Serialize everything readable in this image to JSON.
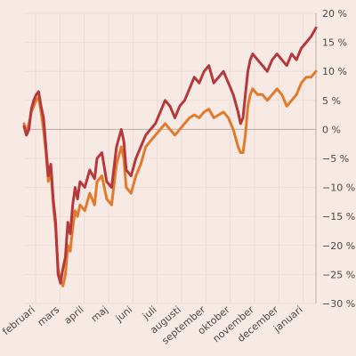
{
  "chart_data": {
    "type": "line",
    "title": "",
    "xlabel": "",
    "ylabel": "",
    "grid": true,
    "y_axis_position": "right",
    "ylim": [
      -30,
      20
    ],
    "yticks": [
      {
        "value": 20,
        "label": "20 %"
      },
      {
        "value": 15,
        "label": "15 %"
      },
      {
        "value": 10,
        "label": "10 %"
      },
      {
        "value": 5,
        "label": "5 %"
      },
      {
        "value": 0,
        "label": "0 %"
      },
      {
        "value": -5,
        "label": "−5 %"
      },
      {
        "value": -10,
        "label": "−10 %"
      },
      {
        "value": -15,
        "label": "−15 %"
      },
      {
        "value": -20,
        "label": "−20 %"
      },
      {
        "value": -25,
        "label": "−25 %"
      },
      {
        "value": -30,
        "label": "−30 %"
      }
    ],
    "xlim": [
      0,
      12
    ],
    "xticks": [
      {
        "value": 0.0,
        "label": "februari"
      },
      {
        "value": 1.0,
        "label": "mars"
      },
      {
        "value": 2.0,
        "label": "april"
      },
      {
        "value": 3.0,
        "label": "maj"
      },
      {
        "value": 4.0,
        "label": "juni"
      },
      {
        "value": 5.0,
        "label": "juli"
      },
      {
        "value": 6.0,
        "label": "augusti"
      },
      {
        "value": 7.0,
        "label": "september"
      },
      {
        "value": 8.0,
        "label": "oktober"
      },
      {
        "value": 9.0,
        "label": "november"
      },
      {
        "value": 10.0,
        "label": "december"
      },
      {
        "value": 11.0,
        "label": "januari"
      }
    ],
    "series": [
      {
        "color": "#b5393b",
        "x": [
          0.0,
          0.1,
          0.2,
          0.3,
          0.4,
          0.5,
          0.6,
          0.7,
          0.8,
          0.9,
          1.0,
          1.1,
          1.2,
          1.3,
          1.4,
          1.5,
          1.6,
          1.7,
          1.8,
          1.9,
          2.0,
          2.1,
          2.2,
          2.3,
          2.5,
          2.7,
          2.9,
          3.0,
          3.2,
          3.4,
          3.6,
          3.8,
          4.0,
          4.1,
          4.2,
          4.4,
          4.6,
          4.8,
          5.0,
          5.2,
          5.4,
          5.6,
          5.8,
          6.0,
          6.2,
          6.4,
          6.6,
          6.8,
          7.0,
          7.2,
          7.4,
          7.6,
          7.8,
          8.0,
          8.2,
          8.4,
          8.6,
          8.8,
          8.9,
          9.0,
          9.1,
          9.2,
          9.3,
          9.4,
          9.6,
          9.8,
          10.0,
          10.2,
          10.4,
          10.6,
          10.8,
          11.0,
          11.2,
          11.4,
          11.6,
          11.8,
          12.0
        ],
        "y": [
          0.5,
          -1.0,
          0.0,
          3.5,
          5.0,
          6.0,
          6.5,
          4.0,
          2.0,
          -3.0,
          -8.0,
          -6.0,
          -12.0,
          -16.0,
          -25.0,
          -26.5,
          -24.0,
          -22.0,
          -16.0,
          -18.0,
          -13.0,
          -10.0,
          -12.0,
          -9.0,
          -10.0,
          -7.0,
          -8.5,
          -5.0,
          -4.0,
          -9.0,
          -10.0,
          -3.0,
          0.0,
          -2.0,
          -7.0,
          -8.0,
          -5.0,
          -3.0,
          -1.0,
          0.0,
          1.0,
          3.0,
          5.0,
          4.0,
          2.0,
          4.0,
          5.0,
          7.0,
          9.0,
          8.0,
          10.0,
          11.0,
          8.0,
          9.0,
          10.0,
          8.0,
          6.0,
          3.0,
          1.0,
          2.0,
          6.0,
          10.0,
          12.0,
          13.0,
          12.0,
          11.0,
          10.0,
          12.0,
          13.0,
          12.0,
          11.0,
          13.0,
          12.0,
          14.0,
          15.0,
          16.0,
          17.5
        ]
      },
      {
        "color": "#e27a2c",
        "x": [
          0.0,
          0.1,
          0.2,
          0.3,
          0.4,
          0.5,
          0.6,
          0.7,
          0.8,
          0.9,
          1.0,
          1.1,
          1.2,
          1.3,
          1.4,
          1.5,
          1.6,
          1.7,
          1.8,
          1.9,
          2.0,
          2.1,
          2.2,
          2.3,
          2.5,
          2.7,
          2.9,
          3.0,
          3.2,
          3.4,
          3.6,
          3.8,
          4.0,
          4.1,
          4.2,
          4.4,
          4.6,
          4.8,
          5.0,
          5.2,
          5.4,
          5.6,
          5.8,
          6.0,
          6.2,
          6.4,
          6.6,
          6.8,
          7.0,
          7.2,
          7.4,
          7.6,
          7.8,
          8.0,
          8.2,
          8.4,
          8.6,
          8.8,
          8.9,
          9.0,
          9.1,
          9.2,
          9.3,
          9.4,
          9.6,
          9.8,
          10.0,
          10.2,
          10.4,
          10.6,
          10.8,
          11.0,
          11.2,
          11.4,
          11.6,
          11.8,
          12.0
        ],
        "y": [
          1.0,
          -0.5,
          1.0,
          3.0,
          4.0,
          5.0,
          5.5,
          3.0,
          0.0,
          -4.0,
          -9.0,
          -7.0,
          -13.0,
          -17.0,
          -24.0,
          -26.0,
          -27.0,
          -25.0,
          -20.0,
          -21.0,
          -17.0,
          -14.0,
          -15.0,
          -13.0,
          -14.0,
          -11.0,
          -13.0,
          -9.0,
          -8.0,
          -12.0,
          -13.0,
          -6.0,
          -3.0,
          -5.0,
          -10.0,
          -11.0,
          -8.0,
          -6.0,
          -3.0,
          -2.0,
          -1.0,
          0.0,
          1.0,
          0.0,
          -1.0,
          0.0,
          1.0,
          2.0,
          2.5,
          2.0,
          3.0,
          3.5,
          2.0,
          2.5,
          3.0,
          2.0,
          0.0,
          -3.0,
          -4.0,
          -4.0,
          -1.0,
          4.0,
          6.0,
          7.0,
          6.0,
          6.0,
          5.0,
          6.0,
          7.0,
          6.0,
          4.0,
          5.0,
          6.0,
          8.0,
          9.0,
          9.0,
          10.0
        ]
      }
    ]
  }
}
